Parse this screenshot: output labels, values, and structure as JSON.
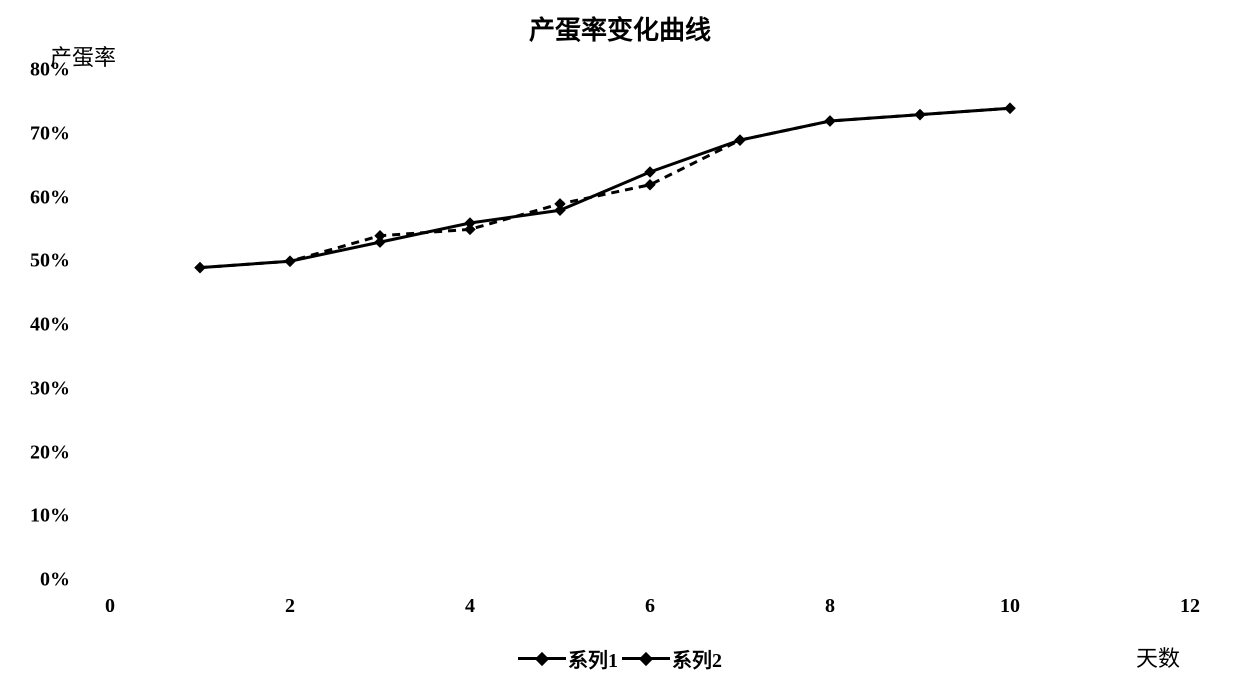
{
  "chart": {
    "type": "line",
    "title": "产蛋率变化曲线",
    "title_fontsize": 26,
    "y_axis_title": "产蛋率",
    "x_axis_title": "天数",
    "axis_title_fontsize": 22,
    "tick_fontsize": 20,
    "legend_fontsize": 20,
    "background_color": "#ffffff",
    "text_color": "#000000",
    "xlim": [
      0,
      12
    ],
    "ylim": [
      0,
      80
    ],
    "x_ticks": [
      0,
      2,
      4,
      6,
      8,
      10,
      12
    ],
    "y_ticks_values": [
      0,
      10,
      20,
      30,
      40,
      50,
      60,
      70,
      80
    ],
    "y_tick_labels": [
      "0%",
      "10%",
      "20%",
      "30%",
      "40%",
      "50%",
      "60%",
      "70%",
      "80%"
    ],
    "series": [
      {
        "name": "系列1",
        "color": "#000000",
        "line_width": 3,
        "line_style": "solid",
        "marker_style": "diamond",
        "marker_size": 10,
        "x": [
          1,
          2,
          3,
          4,
          5,
          6,
          7,
          8,
          9,
          10
        ],
        "y": [
          49,
          50,
          53,
          56,
          58,
          64,
          69,
          72,
          73,
          74
        ]
      },
      {
        "name": "系列2",
        "color": "#000000",
        "line_width": 3,
        "line_style": "dashed",
        "dash_pattern": "8,6",
        "marker_style": "diamond",
        "marker_size": 10,
        "x": [
          1,
          2,
          3,
          4,
          5,
          6,
          7,
          8,
          9,
          10
        ],
        "y": [
          49,
          50,
          54,
          55,
          59,
          62,
          69,
          72,
          73,
          74
        ]
      }
    ]
  }
}
